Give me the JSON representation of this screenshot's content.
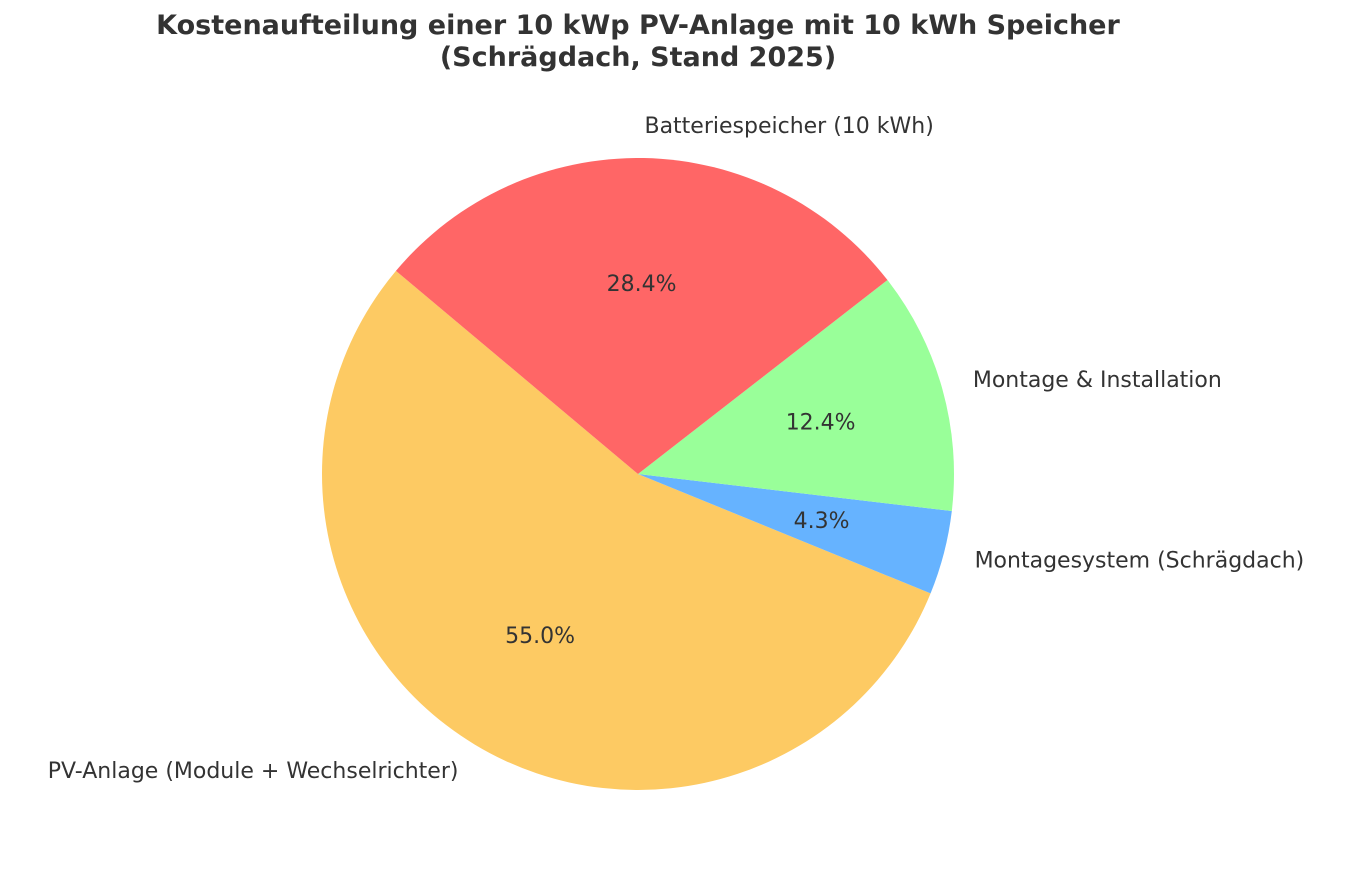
{
  "chart_data": {
    "type": "pie",
    "title": [
      "Kostenaufteilung einer 10 kWp PV-Anlage mit 10 kWh Speicher",
      "(Schrägdach, Stand 2025)"
    ],
    "start_angle_deg": 140,
    "direction": "counterclockwise",
    "slices": [
      {
        "label": "PV-Anlage (Module + Wechselrichter)",
        "value": 55.0,
        "pct_label": "55.0%",
        "color": "#fdca63"
      },
      {
        "label": "Montagesystem (Schrägdach)",
        "value": 4.3,
        "pct_label": "4.3%",
        "color": "#66b3ff"
      },
      {
        "label": "Montage & Installation",
        "value": 12.4,
        "pct_label": "12.4%",
        "color": "#99ff99"
      },
      {
        "label": "Batteriespeicher (10 kWh)",
        "value": 28.4,
        "pct_label": "28.4%",
        "color": "#ff6666"
      }
    ],
    "legend": "none"
  }
}
